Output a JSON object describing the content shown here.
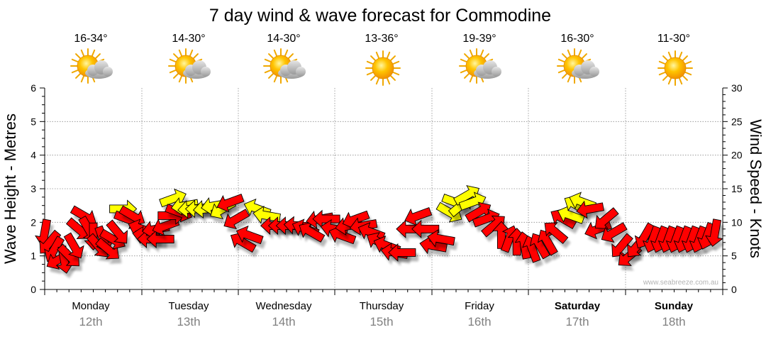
{
  "chart_data": {
    "type": "line",
    "title": "7 day wind & wave forecast for Commodine",
    "ylabel_left": "Wave Height - Metres",
    "ylabel_right": "Wind Speed - Knots",
    "left_axis": {
      "ylim": [
        0,
        6
      ],
      "ticks": [
        "0",
        "1",
        "2",
        "3",
        "4",
        "5",
        "6"
      ]
    },
    "right_axis": {
      "ylim": [
        0,
        30
      ],
      "ticks": [
        "0",
        "5",
        "10",
        "15",
        "20",
        "25",
        "30"
      ]
    },
    "grid": "dotted",
    "watermark": "www.seabreeze.com.au",
    "days": [
      {
        "name": "Monday",
        "date": "12th",
        "temp": "16-34°",
        "weather": "partly-cloudy",
        "bold": false
      },
      {
        "name": "Tuesday",
        "date": "13th",
        "temp": "14-30°",
        "weather": "partly-cloudy",
        "bold": false
      },
      {
        "name": "Wednesday",
        "date": "14th",
        "temp": "14-30°",
        "weather": "partly-cloudy",
        "bold": false
      },
      {
        "name": "Thursday",
        "date": "15th",
        "temp": "13-36°",
        "weather": "sunny",
        "bold": false
      },
      {
        "name": "Friday",
        "date": "16th",
        "temp": "19-39°",
        "weather": "partly-cloudy",
        "bold": false
      },
      {
        "name": "Saturday",
        "date": "17th",
        "temp": "16-30°",
        "weather": "partly-cloudy",
        "bold": true
      },
      {
        "name": "Sunday",
        "date": "18th",
        "temp": "11-30°",
        "weather": "sunny",
        "bold": true
      }
    ],
    "wind_series": {
      "name": "Wind speed (knots) & direction",
      "units": "knots",
      "colors": {
        "strong": "#ff0000",
        "light": "#ffff00"
      },
      "points": [
        {
          "t": 0.0,
          "kn": 8.5,
          "dir": 100,
          "c": "red"
        },
        {
          "t": 0.05,
          "kn": 7.0,
          "dir": 130,
          "c": "red"
        },
        {
          "t": 0.1,
          "kn": 6.0,
          "dir": 120,
          "c": "red"
        },
        {
          "t": 0.15,
          "kn": 4.5,
          "dir": 150,
          "c": "red"
        },
        {
          "t": 0.2,
          "kn": 4.5,
          "dir": 80,
          "c": "red"
        },
        {
          "t": 0.25,
          "kn": 5.0,
          "dir": 45,
          "c": "red"
        },
        {
          "t": 0.3,
          "kn": 6.5,
          "dir": 60,
          "c": "red"
        },
        {
          "t": 0.35,
          "kn": 9.0,
          "dir": 40,
          "c": "red"
        },
        {
          "t": 0.4,
          "kn": 11.0,
          "dir": 30,
          "c": "red"
        },
        {
          "t": 0.45,
          "kn": 9.0,
          "dir": 60,
          "c": "red"
        },
        {
          "t": 0.5,
          "kn": 8.0,
          "dir": 90,
          "c": "red"
        },
        {
          "t": 0.55,
          "kn": 6.5,
          "dir": 50,
          "c": "red"
        },
        {
          "t": 0.6,
          "kn": 7.5,
          "dir": 70,
          "c": "red"
        },
        {
          "t": 0.65,
          "kn": 6.0,
          "dir": 40,
          "c": "red"
        },
        {
          "t": 0.7,
          "kn": 7.5,
          "dir": 30,
          "c": "red"
        },
        {
          "t": 0.75,
          "kn": 8.5,
          "dir": 50,
          "c": "red"
        },
        {
          "t": 0.8,
          "kn": 12.0,
          "dir": 0,
          "c": "yellow"
        },
        {
          "t": 0.85,
          "kn": 10.5,
          "dir": 20,
          "c": "red"
        },
        {
          "t": 0.9,
          "kn": 11.0,
          "dir": 30,
          "c": "red"
        },
        {
          "t": 1.0,
          "kn": 9.0,
          "dir": 200,
          "c": "red"
        },
        {
          "t": 1.05,
          "kn": 8.0,
          "dir": 190,
          "c": "red"
        },
        {
          "t": 1.1,
          "kn": 7.5,
          "dir": 180,
          "c": "red"
        },
        {
          "t": 1.15,
          "kn": 9.0,
          "dir": 170,
          "c": "red"
        },
        {
          "t": 1.2,
          "kn": 7.5,
          "dir": 180,
          "c": "red"
        },
        {
          "t": 1.25,
          "kn": 9.5,
          "dir": 160,
          "c": "red"
        },
        {
          "t": 1.3,
          "kn": 11.0,
          "dir": 0,
          "c": "red"
        },
        {
          "t": 1.32,
          "kn": 13.5,
          "dir": 340,
          "c": "yellow"
        },
        {
          "t": 1.38,
          "kn": 11.5,
          "dir": 20,
          "c": "red"
        },
        {
          "t": 1.45,
          "kn": 12.5,
          "dir": 170,
          "c": "yellow"
        },
        {
          "t": 1.52,
          "kn": 12.0,
          "dir": 175,
          "c": "yellow"
        },
        {
          "t": 1.6,
          "kn": 12.0,
          "dir": 180,
          "c": "yellow"
        },
        {
          "t": 1.68,
          "kn": 12.0,
          "dir": 175,
          "c": "yellow"
        },
        {
          "t": 1.76,
          "kn": 12.5,
          "dir": 170,
          "c": "yellow"
        },
        {
          "t": 1.84,
          "kn": 12.0,
          "dir": 150,
          "c": "yellow"
        },
        {
          "t": 1.92,
          "kn": 13.0,
          "dir": 160,
          "c": "red"
        },
        {
          "t": 1.98,
          "kn": 10.5,
          "dir": 150,
          "c": "red"
        },
        {
          "t": 2.05,
          "kn": 7.0,
          "dir": 210,
          "c": "red"
        },
        {
          "t": 2.12,
          "kn": 8.0,
          "dir": 200,
          "c": "red"
        },
        {
          "t": 2.2,
          "kn": 12.0,
          "dir": 200,
          "c": "yellow"
        },
        {
          "t": 2.3,
          "kn": 11.0,
          "dir": 190,
          "c": "yellow"
        },
        {
          "t": 2.38,
          "kn": 9.5,
          "dir": 180,
          "c": "red"
        },
        {
          "t": 2.46,
          "kn": 9.5,
          "dir": 180,
          "c": "red"
        },
        {
          "t": 2.54,
          "kn": 9.5,
          "dir": 180,
          "c": "red"
        },
        {
          "t": 2.62,
          "kn": 9.5,
          "dir": 185,
          "c": "red"
        },
        {
          "t": 2.7,
          "kn": 9.0,
          "dir": 200,
          "c": "red"
        },
        {
          "t": 2.76,
          "kn": 8.5,
          "dir": 210,
          "c": "red"
        },
        {
          "t": 2.85,
          "kn": 10.5,
          "dir": 170,
          "c": "red"
        },
        {
          "t": 2.92,
          "kn": 10.5,
          "dir": 180,
          "c": "red"
        },
        {
          "t": 3.0,
          "kn": 9.0,
          "dir": 190,
          "c": "red"
        },
        {
          "t": 3.08,
          "kn": 8.0,
          "dir": 200,
          "c": "red"
        },
        {
          "t": 3.15,
          "kn": 9.5,
          "dir": 170,
          "c": "red"
        },
        {
          "t": 3.22,
          "kn": 10.5,
          "dir": 160,
          "c": "red"
        },
        {
          "t": 3.3,
          "kn": 9.5,
          "dir": 170,
          "c": "red"
        },
        {
          "t": 3.38,
          "kn": 8.5,
          "dir": 200,
          "c": "red"
        },
        {
          "t": 3.46,
          "kn": 7.0,
          "dir": 210,
          "c": "red"
        },
        {
          "t": 3.54,
          "kn": 6.5,
          "dir": 200,
          "c": "red"
        },
        {
          "t": 3.62,
          "kn": 5.5,
          "dir": 190,
          "c": "red"
        },
        {
          "t": 3.7,
          "kn": 5.5,
          "dir": 180,
          "c": "red"
        },
        {
          "t": 3.78,
          "kn": 9.0,
          "dir": 180,
          "c": "red"
        },
        {
          "t": 3.86,
          "kn": 11.0,
          "dir": 160,
          "c": "red"
        },
        {
          "t": 3.94,
          "kn": 9.0,
          "dir": 180,
          "c": "red"
        },
        {
          "t": 4.02,
          "kn": 6.5,
          "dir": 190,
          "c": "red"
        },
        {
          "t": 4.1,
          "kn": 7.5,
          "dir": 190,
          "c": "red"
        },
        {
          "t": 4.18,
          "kn": 11.5,
          "dir": 30,
          "c": "yellow"
        },
        {
          "t": 4.24,
          "kn": 13.0,
          "dir": 20,
          "c": "yellow"
        },
        {
          "t": 4.3,
          "kn": 12.5,
          "dir": 320,
          "c": "yellow"
        },
        {
          "t": 4.36,
          "kn": 14.0,
          "dir": 330,
          "c": "yellow"
        },
        {
          "t": 4.42,
          "kn": 13.0,
          "dir": 340,
          "c": "yellow"
        },
        {
          "t": 4.48,
          "kn": 11.5,
          "dir": 330,
          "c": "red"
        },
        {
          "t": 4.56,
          "kn": 10.5,
          "dir": 340,
          "c": "red"
        },
        {
          "t": 4.64,
          "kn": 9.5,
          "dir": 320,
          "c": "red"
        },
        {
          "t": 4.72,
          "kn": 8.0,
          "dir": 270,
          "c": "red"
        },
        {
          "t": 4.8,
          "kn": 7.5,
          "dir": 290,
          "c": "red"
        },
        {
          "t": 4.88,
          "kn": 7.0,
          "dir": 270,
          "c": "red"
        },
        {
          "t": 4.96,
          "kn": 6.5,
          "dir": 260,
          "c": "red"
        },
        {
          "t": 5.04,
          "kn": 6.0,
          "dir": 250,
          "c": "red"
        },
        {
          "t": 5.12,
          "kn": 6.5,
          "dir": 240,
          "c": "red"
        },
        {
          "t": 5.2,
          "kn": 7.0,
          "dir": 240,
          "c": "red"
        },
        {
          "t": 5.28,
          "kn": 8.5,
          "dir": 220,
          "c": "red"
        },
        {
          "t": 5.36,
          "kn": 10.5,
          "dir": 210,
          "c": "red"
        },
        {
          "t": 5.44,
          "kn": 11.0,
          "dir": 200,
          "c": "yellow"
        },
        {
          "t": 5.5,
          "kn": 12.5,
          "dir": 210,
          "c": "yellow"
        },
        {
          "t": 5.56,
          "kn": 13.0,
          "dir": 200,
          "c": "yellow"
        },
        {
          "t": 5.64,
          "kn": 12.0,
          "dir": 170,
          "c": "red"
        },
        {
          "t": 5.72,
          "kn": 9.0,
          "dir": 160,
          "c": "red"
        },
        {
          "t": 5.8,
          "kn": 10.5,
          "dir": 140,
          "c": "red"
        },
        {
          "t": 5.88,
          "kn": 8.5,
          "dir": 150,
          "c": "red"
        },
        {
          "t": 5.96,
          "kn": 6.5,
          "dir": 130,
          "c": "red"
        },
        {
          "t": 6.04,
          "kn": 5.0,
          "dir": 140,
          "c": "red"
        },
        {
          "t": 6.12,
          "kn": 6.5,
          "dir": 130,
          "c": "red"
        },
        {
          "t": 6.2,
          "kn": 8.0,
          "dir": 120,
          "c": "red"
        },
        {
          "t": 6.28,
          "kn": 7.5,
          "dir": 110,
          "c": "red"
        },
        {
          "t": 6.36,
          "kn": 7.5,
          "dir": 110,
          "c": "red"
        },
        {
          "t": 6.44,
          "kn": 7.5,
          "dir": 110,
          "c": "red"
        },
        {
          "t": 6.52,
          "kn": 7.5,
          "dir": 110,
          "c": "red"
        },
        {
          "t": 6.6,
          "kn": 7.5,
          "dir": 110,
          "c": "red"
        },
        {
          "t": 6.68,
          "kn": 7.5,
          "dir": 110,
          "c": "red"
        },
        {
          "t": 6.76,
          "kn": 7.5,
          "dir": 110,
          "c": "red"
        },
        {
          "t": 6.84,
          "kn": 8.0,
          "dir": 110,
          "c": "red"
        },
        {
          "t": 6.92,
          "kn": 8.5,
          "dir": 100,
          "c": "red"
        }
      ]
    }
  }
}
